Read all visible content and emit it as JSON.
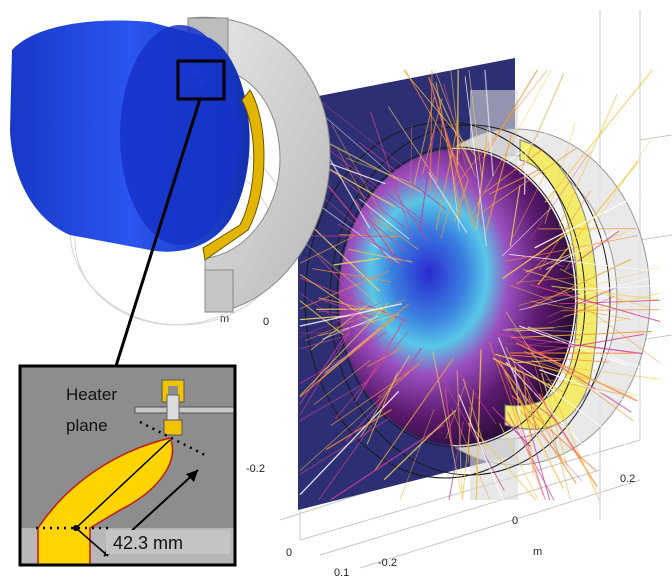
{
  "axes": {
    "unit_top": "m",
    "zero_left": "0",
    "minus_left": "-0.2",
    "zero_right": "0",
    "plus_right": "0.2",
    "unit_right": "m",
    "zero_bottom": "0",
    "minus_bottom": "-0.2",
    "tick_bottom": "0.1"
  },
  "inset": {
    "heater_line1": "Heater",
    "heater_line2": "plane",
    "dimension": "42.3 mm"
  },
  "colors": {
    "blue_body": "#1d3fd6",
    "gold": "#ffd400",
    "plane": "#2c2f73",
    "inset_bg": "#8c8c8c"
  }
}
